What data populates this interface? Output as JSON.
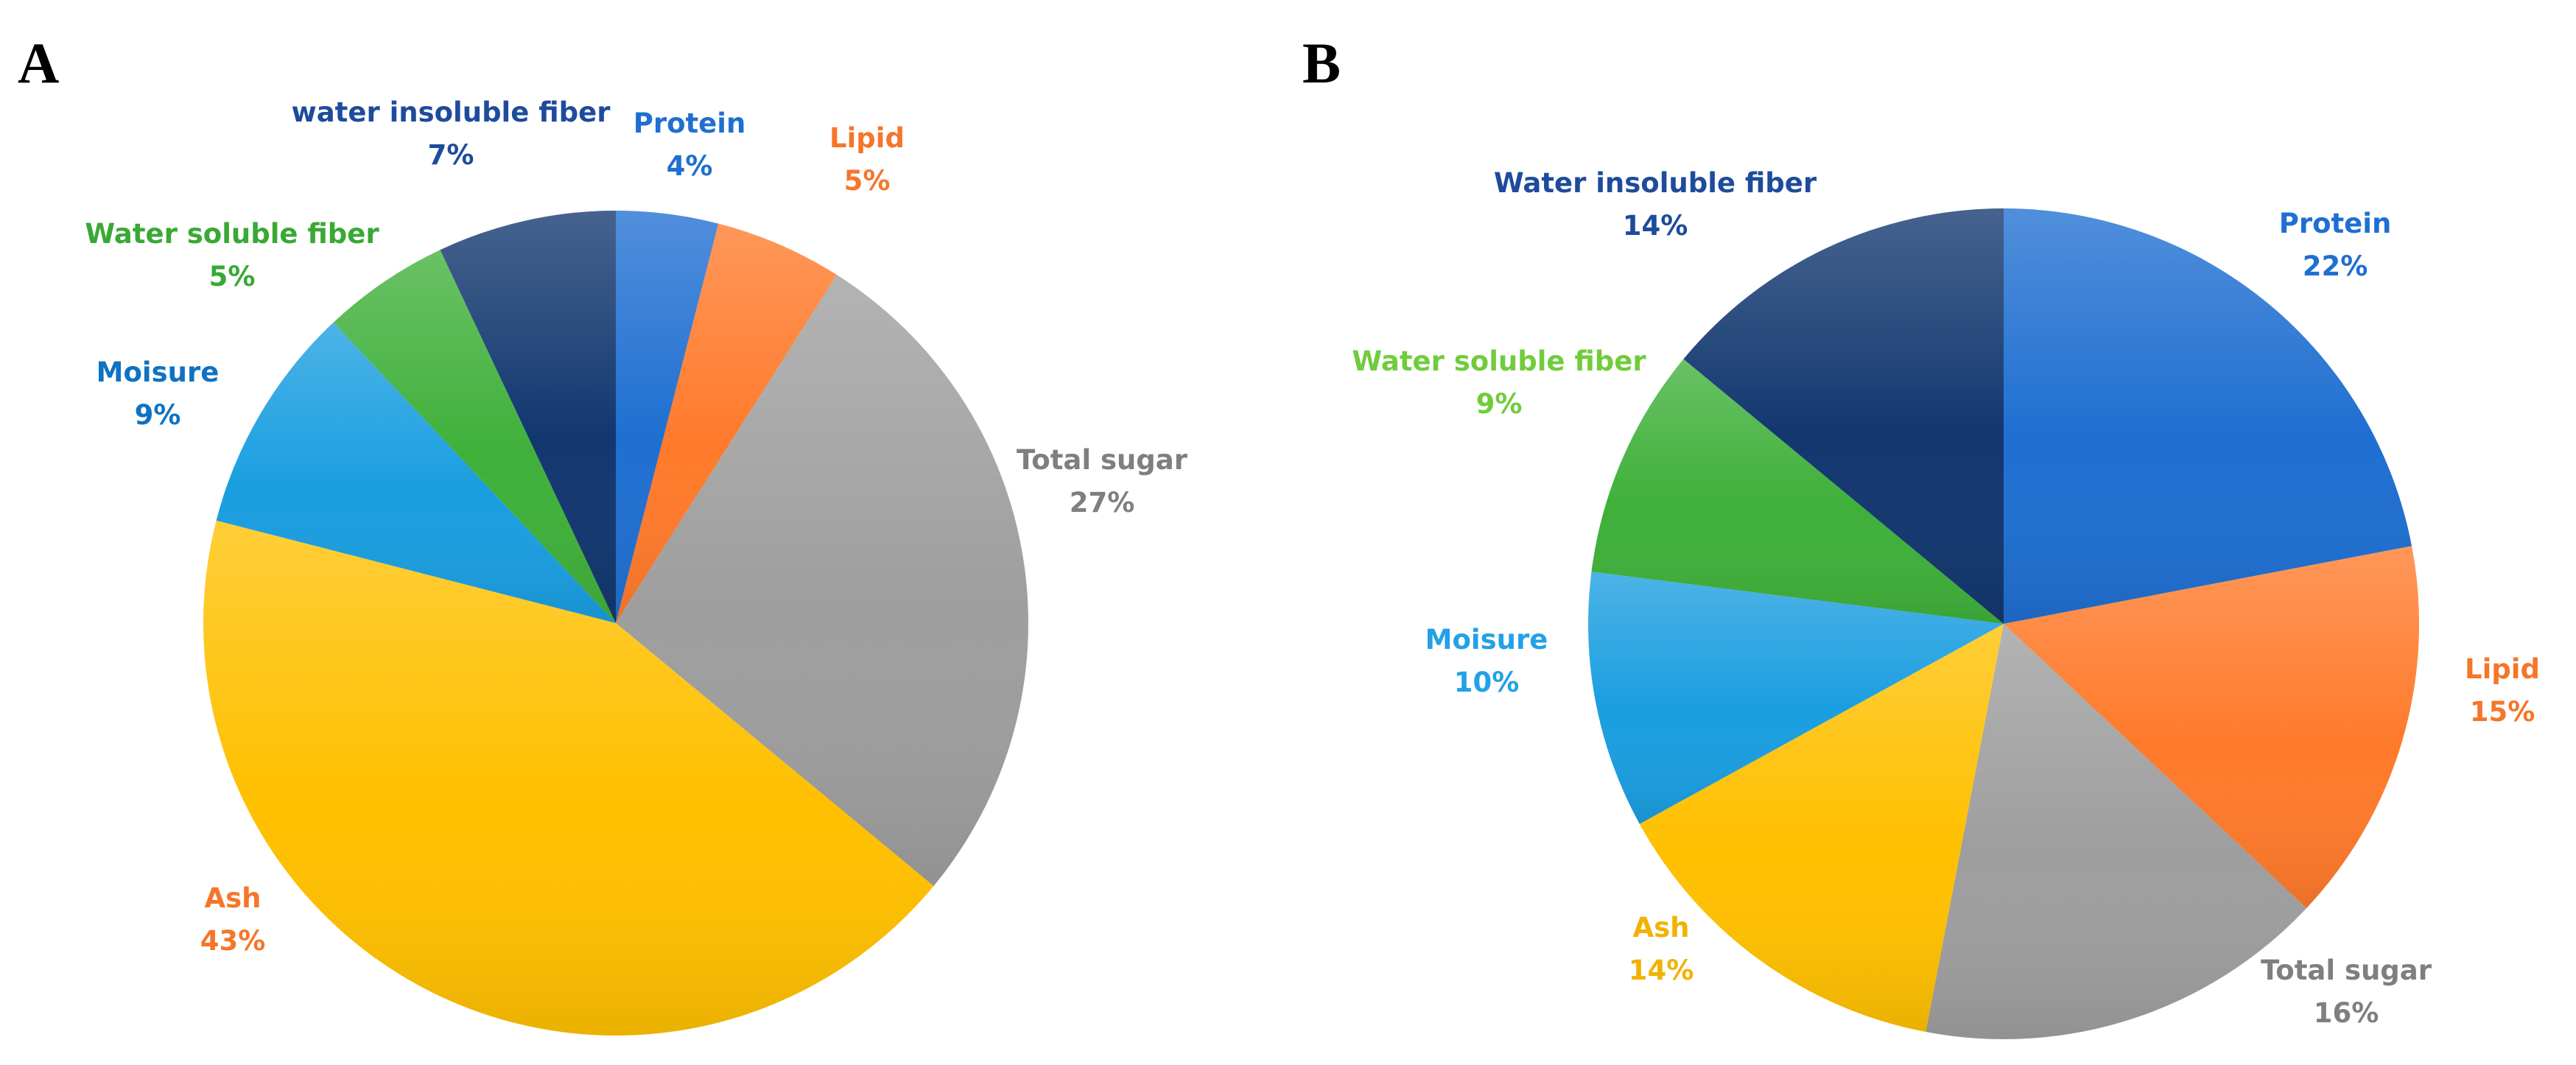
{
  "colors": {
    "protein": "#1f6fd1",
    "lipid": "#ff7a2b",
    "total_sugar": "#9e9e9e",
    "ash": "#ffc000",
    "moisture": "#1a9ee0",
    "water_soluble_fiber": "#3fb03a",
    "water_insoluble_fiber": "#12376f",
    "label_protein": "#1f6fd1",
    "label_lipid": "#f5762a",
    "label_total_sugar": "#7f7f7f",
    "label_ash_a": "#f5762a",
    "label_ash_b": "#f2b200",
    "label_moisture_a": "#0f72c2",
    "label_moisture_b": "#23a1e6",
    "label_wsf_a": "#39a935",
    "label_wsf_b": "#71cc3c",
    "label_wif": "#1e4b9c"
  },
  "chart_data": [
    {
      "type": "pie",
      "panel": "A",
      "start_angle_deg": 0,
      "direction": "clockwise",
      "slices": [
        {
          "key": "protein",
          "label": "Protein",
          "value": 4,
          "value_label": "4%",
          "color_key": "protein",
          "label_color_key": "label_protein"
        },
        {
          "key": "lipid",
          "label": "Lipid",
          "value": 5,
          "value_label": "5%",
          "color_key": "lipid",
          "label_color_key": "label_lipid"
        },
        {
          "key": "total_sugar",
          "label": "Total sugar",
          "value": 27,
          "value_label": "27%",
          "color_key": "total_sugar",
          "label_color_key": "label_total_sugar"
        },
        {
          "key": "ash",
          "label": "Ash",
          "value": 43,
          "value_label": "43%",
          "color_key": "ash",
          "label_color_key": "label_ash_a"
        },
        {
          "key": "moisture",
          "label": "Moisure",
          "value": 9,
          "value_label": "9%",
          "color_key": "moisture",
          "label_color_key": "label_moisture_a"
        },
        {
          "key": "water_soluble_fiber",
          "label": "Water soluble fiber",
          "value": 5,
          "value_label": "5%",
          "color_key": "water_soluble_fiber",
          "label_color_key": "label_wsf_a"
        },
        {
          "key": "water_insoluble_fiber",
          "label": "water insoluble fiber",
          "value": 7,
          "value_label": "7%",
          "color_key": "water_insoluble_fiber",
          "label_color_key": "label_wif"
        }
      ]
    },
    {
      "type": "pie",
      "panel": "B",
      "start_angle_deg": 0,
      "direction": "clockwise",
      "slices": [
        {
          "key": "protein",
          "label": "Protein",
          "value": 22,
          "value_label": "22%",
          "color_key": "protein",
          "label_color_key": "label_protein"
        },
        {
          "key": "lipid",
          "label": "Lipid",
          "value": 15,
          "value_label": "15%",
          "color_key": "lipid",
          "label_color_key": "label_lipid"
        },
        {
          "key": "total_sugar",
          "label": "Total sugar",
          "value": 16,
          "value_label": "16%",
          "color_key": "total_sugar",
          "label_color_key": "label_total_sugar"
        },
        {
          "key": "ash",
          "label": "Ash",
          "value": 14,
          "value_label": "14%",
          "color_key": "ash",
          "label_color_key": "label_ash_b"
        },
        {
          "key": "moisture",
          "label": "Moisure",
          "value": 10,
          "value_label": "10%",
          "color_key": "moisture",
          "label_color_key": "label_moisture_b"
        },
        {
          "key": "water_soluble_fiber",
          "label": "Water soluble fiber",
          "value": 9,
          "value_label": "9%",
          "color_key": "water_soluble_fiber",
          "label_color_key": "label_wsf_b"
        },
        {
          "key": "water_insoluble_fiber",
          "label": "Water insoluble fiber",
          "value": 14,
          "value_label": "14%",
          "color_key": "water_insoluble_fiber",
          "label_color_key": "label_wif"
        }
      ]
    }
  ]
}
